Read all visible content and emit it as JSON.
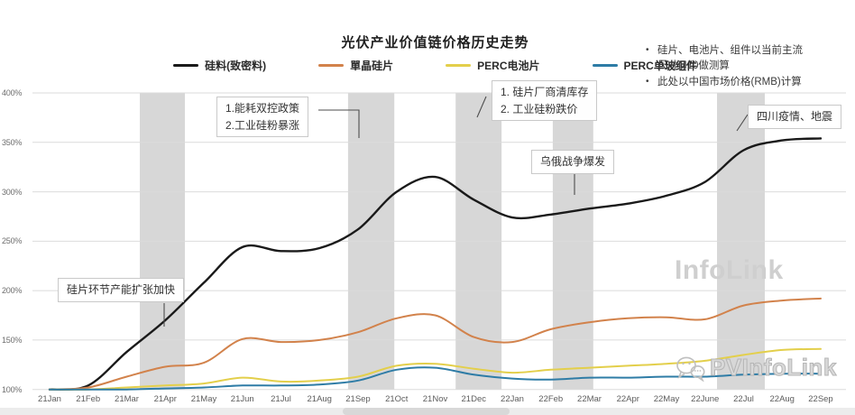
{
  "title": "光伏产业价值链价格历史走势",
  "notes": [
    "硅片、电池片、组件以当前主流尺寸M10做测算",
    "此处以中国市场价格(RMB)计算"
  ],
  "watermarks": {
    "center": "InfoLink",
    "bottom": "PVInfoLink"
  },
  "chart_data": {
    "type": "line",
    "title": "光伏产业价值链价格历史走势",
    "x": [
      "21Jan",
      "21Feb",
      "21Mar",
      "21Apr",
      "21May",
      "21Jun",
      "21Jul",
      "21Aug",
      "21Sep",
      "21Oct",
      "21Nov",
      "21Dec",
      "22Jan",
      "22Feb",
      "22Mar",
      "22Apr",
      "22May",
      "22June",
      "22Jul",
      "22Aug",
      "22Sep"
    ],
    "series": [
      {
        "name": "硅料(致密料)",
        "color": "#1a1a1a",
        "values": [
          100,
          104,
          138,
          170,
          208,
          244,
          240,
          243,
          262,
          300,
          315,
          292,
          274,
          277,
          283,
          288,
          296,
          310,
          342,
          352,
          354
        ]
      },
      {
        "name": "單晶硅片",
        "color": "#d2824b",
        "values": [
          100,
          102,
          113,
          123,
          127,
          151,
          148,
          150,
          158,
          172,
          175,
          153,
          148,
          161,
          168,
          172,
          173,
          171,
          185,
          190,
          192
        ]
      },
      {
        "name": "PERC电池片",
        "color": "#e3cf4b",
        "values": [
          100,
          100,
          102,
          104,
          106,
          112,
          108,
          109,
          113,
          124,
          126,
          121,
          117,
          120,
          122,
          124,
          126,
          129,
          135,
          140,
          141
        ]
      },
      {
        "name": "PERC单玻组件",
        "color": "#2e7ca6",
        "values": [
          100,
          100,
          100,
          101,
          102,
          104,
          104,
          105,
          109,
          120,
          122,
          115,
          111,
          110,
          112,
          112,
          113,
          113,
          115,
          116,
          116
        ]
      }
    ],
    "ylim": [
      100,
      400
    ],
    "yticks": [
      "100%",
      "150%",
      "200%",
      "250%",
      "300%",
      "350%",
      "400%"
    ],
    "ytick_step": 50,
    "grid": true,
    "legend_position": "top-center",
    "band_color": "#d7d7d7",
    "highlight_bands": [
      {
        "from_month": 2.34,
        "to_month": 3.51,
        "event": "硅片环节产能扩张加快"
      },
      {
        "from_month": 7.74,
        "to_month": 8.94,
        "event": "1.能耗双控政策 2.工业硅粉暴涨"
      },
      {
        "from_month": 10.53,
        "to_month": 11.72,
        "event": "1. 硅片厂商清库存 2. 工业硅粉跌价"
      },
      {
        "from_month": 13.05,
        "to_month": 14.1,
        "event": "乌俄战争爆发"
      },
      {
        "from_month": 17.31,
        "to_month": 18.55,
        "event": "四川疫情、地震"
      }
    ],
    "annotations": [
      {
        "text": "硅片环节产能扩张加快"
      },
      {
        "text": "1.能耗双控政策\n2.工业硅粉暴涨"
      },
      {
        "text": "1. 硅片厂商清库存\n2. 工业硅粉跌价"
      },
      {
        "text": "乌俄战争爆发"
      },
      {
        "text": "四川疫情、地震"
      }
    ]
  }
}
